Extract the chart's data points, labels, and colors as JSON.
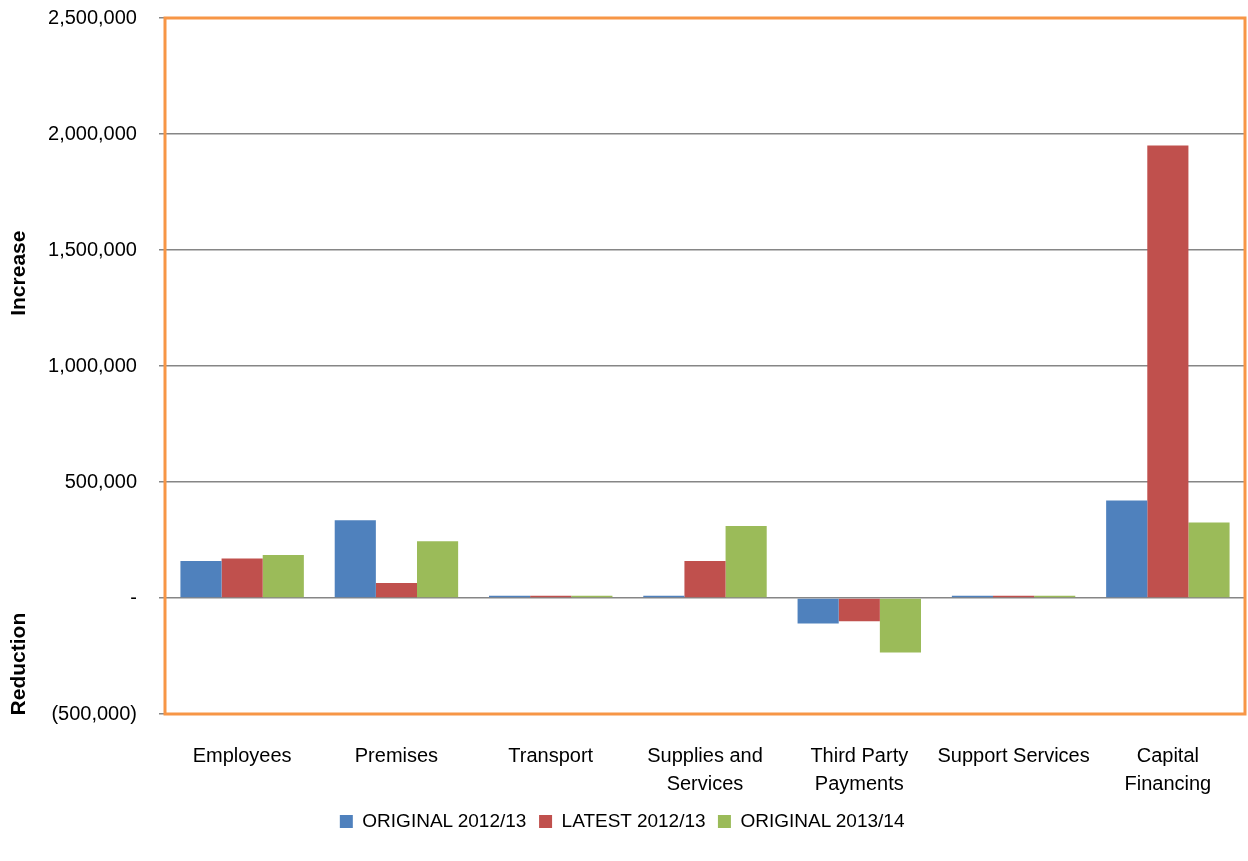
{
  "chart_data": {
    "type": "bar",
    "ylabel": "Increase",
    "annotations": [
      "Reduction"
    ],
    "categories": [
      "Employees",
      "Premises",
      "Transport",
      "Supplies and Services",
      "Third Party Payments",
      "Support Services",
      "Capital Financing"
    ],
    "series": [
      {
        "name": "ORIGINAL 2012/13",
        "color": "#4f81bd",
        "values": [
          160000,
          335000,
          10000,
          10000,
          -110000,
          10000,
          420000
        ]
      },
      {
        "name": "LATEST 2012/13",
        "color": "#c0504d",
        "values": [
          170000,
          65000,
          10000,
          160000,
          -100000,
          10000,
          1950000
        ]
      },
      {
        "name": "ORIGINAL 2013/14",
        "color": "#9bbb59",
        "values": [
          185000,
          245000,
          10000,
          310000,
          -235000,
          10000,
          325000
        ]
      }
    ],
    "ylim": [
      -500000,
      2500000
    ],
    "yticks": [
      {
        "value": -500000,
        "label": "(500,000)"
      },
      {
        "value": 0,
        "label": "-"
      },
      {
        "value": 500000,
        "label": "500,000"
      },
      {
        "value": 1000000,
        "label": "1,000,000"
      },
      {
        "value": 1500000,
        "label": "1,500,000"
      },
      {
        "value": 2000000,
        "label": "2,000,000"
      },
      {
        "value": 2500000,
        "label": "2,500,000"
      }
    ],
    "grid": "y",
    "legend": "bottom"
  }
}
